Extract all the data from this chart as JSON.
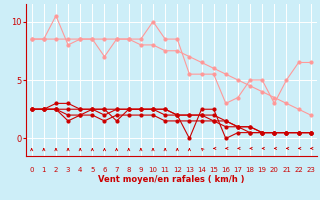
{
  "background_color": "#cdeef8",
  "grid_color": "#ffffff",
  "xlabel": "Vent moyen/en rafales ( km/h )",
  "xlabel_color": "#cc0000",
  "tick_color": "#cc0000",
  "x_ticks": [
    0,
    1,
    2,
    3,
    4,
    5,
    6,
    7,
    8,
    9,
    10,
    11,
    12,
    13,
    14,
    15,
    16,
    17,
    18,
    19,
    20,
    21,
    22,
    23
  ],
  "y_ticks": [
    0,
    5,
    10
  ],
  "xlim": [
    -0.5,
    23.5
  ],
  "ylim": [
    -1.5,
    11.5
  ],
  "series": [
    {
      "x": [
        0,
        1,
        2,
        3,
        4,
        5,
        6,
        7,
        8,
        9,
        10,
        11,
        12,
        13,
        14,
        15,
        16,
        17,
        18,
        19,
        20,
        21,
        22,
        23
      ],
      "y": [
        8.5,
        8.5,
        10.5,
        8.0,
        8.5,
        8.5,
        7.0,
        8.5,
        8.5,
        8.5,
        10.0,
        8.5,
        8.5,
        5.5,
        5.5,
        5.5,
        3.0,
        3.5,
        5.0,
        5.0,
        3.0,
        5.0,
        6.5,
        6.5
      ],
      "color": "#ff9999",
      "lw": 0.8,
      "ms": 2.0
    },
    {
      "x": [
        0,
        1,
        2,
        3,
        4,
        5,
        6,
        7,
        8,
        9,
        10,
        11,
        12,
        13,
        14,
        15,
        16,
        17,
        18,
        19,
        20,
        21,
        22,
        23
      ],
      "y": [
        8.5,
        8.5,
        8.5,
        8.5,
        8.5,
        8.5,
        8.5,
        8.5,
        8.5,
        8.0,
        8.0,
        7.5,
        7.5,
        7.0,
        6.5,
        6.0,
        5.5,
        5.0,
        4.5,
        4.0,
        3.5,
        3.0,
        2.5,
        2.0
      ],
      "color": "#ff9999",
      "lw": 0.8,
      "ms": 2.0
    },
    {
      "x": [
        0,
        1,
        2,
        3,
        4,
        5,
        6,
        7,
        8,
        9,
        10,
        11,
        12,
        13,
        14,
        15,
        16,
        17,
        18,
        19,
        20,
        21,
        22,
        23
      ],
      "y": [
        2.5,
        2.5,
        3.0,
        3.0,
        2.5,
        2.5,
        2.0,
        2.5,
        2.5,
        2.5,
        2.5,
        2.5,
        2.0,
        0.0,
        2.5,
        2.5,
        0.0,
        0.5,
        0.5,
        0.5,
        0.5,
        0.5,
        0.5,
        0.5
      ],
      "color": "#cc0000",
      "lw": 0.8,
      "ms": 2.0
    },
    {
      "x": [
        0,
        1,
        2,
        3,
        4,
        5,
        6,
        7,
        8,
        9,
        10,
        11,
        12,
        13,
        14,
        15,
        16,
        17,
        18,
        19,
        20,
        21,
        22,
        23
      ],
      "y": [
        2.5,
        2.5,
        2.5,
        2.0,
        2.0,
        2.0,
        1.5,
        2.0,
        2.0,
        2.0,
        2.0,
        1.5,
        1.5,
        1.5,
        1.5,
        1.5,
        1.0,
        1.0,
        1.0,
        0.5,
        0.5,
        0.5,
        0.5,
        0.5
      ],
      "color": "#cc0000",
      "lw": 0.8,
      "ms": 2.0
    },
    {
      "x": [
        0,
        1,
        2,
        3,
        4,
        5,
        6,
        7,
        8,
        9,
        10,
        11,
        12,
        13,
        14,
        15,
        16,
        17,
        18,
        19,
        20,
        21,
        22,
        23
      ],
      "y": [
        2.5,
        2.5,
        2.5,
        1.5,
        2.0,
        2.5,
        2.5,
        1.5,
        2.5,
        2.5,
        2.5,
        2.5,
        2.0,
        2.0,
        2.0,
        2.0,
        1.5,
        1.0,
        0.5,
        0.5,
        0.5,
        0.5,
        0.5,
        0.5
      ],
      "color": "#cc0000",
      "lw": 0.8,
      "ms": 2.0
    },
    {
      "x": [
        0,
        1,
        2,
        3,
        4,
        5,
        6,
        7,
        8,
        9,
        10,
        11,
        12,
        13,
        14,
        15,
        16,
        17,
        18,
        19,
        20,
        21,
        22,
        23
      ],
      "y": [
        2.5,
        2.5,
        2.5,
        2.5,
        2.5,
        2.5,
        2.5,
        2.5,
        2.5,
        2.5,
        2.5,
        2.0,
        2.0,
        2.0,
        2.0,
        1.5,
        1.5,
        1.0,
        1.0,
        0.5,
        0.5,
        0.5,
        0.5,
        0.5
      ],
      "color": "#cc0000",
      "lw": 0.8,
      "ms": 2.0
    }
  ],
  "wind_dirs": [
    180,
    180,
    180,
    180,
    180,
    180,
    180,
    180,
    180,
    180,
    180,
    180,
    180,
    180,
    225,
    270,
    270,
    270,
    270,
    270,
    270,
    270,
    270,
    270
  ],
  "wind_arrows_color": "#cc0000"
}
